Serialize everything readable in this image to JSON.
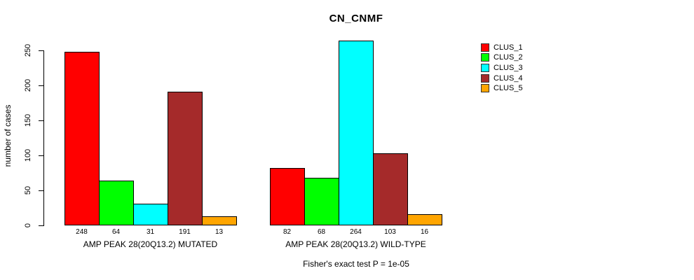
{
  "chart_data": {
    "type": "bar",
    "title": "CN_CNMF",
    "ylabel": "number of cases",
    "xlabel": "",
    "ylim": [
      0,
      250
    ],
    "yticks": [
      0,
      50,
      100,
      150,
      200,
      250
    ],
    "grid": false,
    "legend_position": "right",
    "bar_value_labels": true,
    "categories": [
      "AMP PEAK 28(20Q13.2) MUTATED",
      "AMP PEAK 28(20Q13.2) WILD-TYPE"
    ],
    "series": [
      {
        "name": "CLUS_1",
        "color": "#FF0000",
        "values": [
          248,
          82
        ]
      },
      {
        "name": "CLUS_2",
        "color": "#00FF00",
        "values": [
          64,
          68
        ]
      },
      {
        "name": "CLUS_3",
        "color": "#00FFFF",
        "values": [
          31,
          264
        ]
      },
      {
        "name": "CLUS_4",
        "color": "#A52A2A",
        "values": [
          191,
          103
        ]
      },
      {
        "name": "CLUS_5",
        "color": "#FFA500",
        "values": [
          13,
          16
        ]
      }
    ],
    "annotation": "Fisher's exact test P = 1e-05"
  }
}
